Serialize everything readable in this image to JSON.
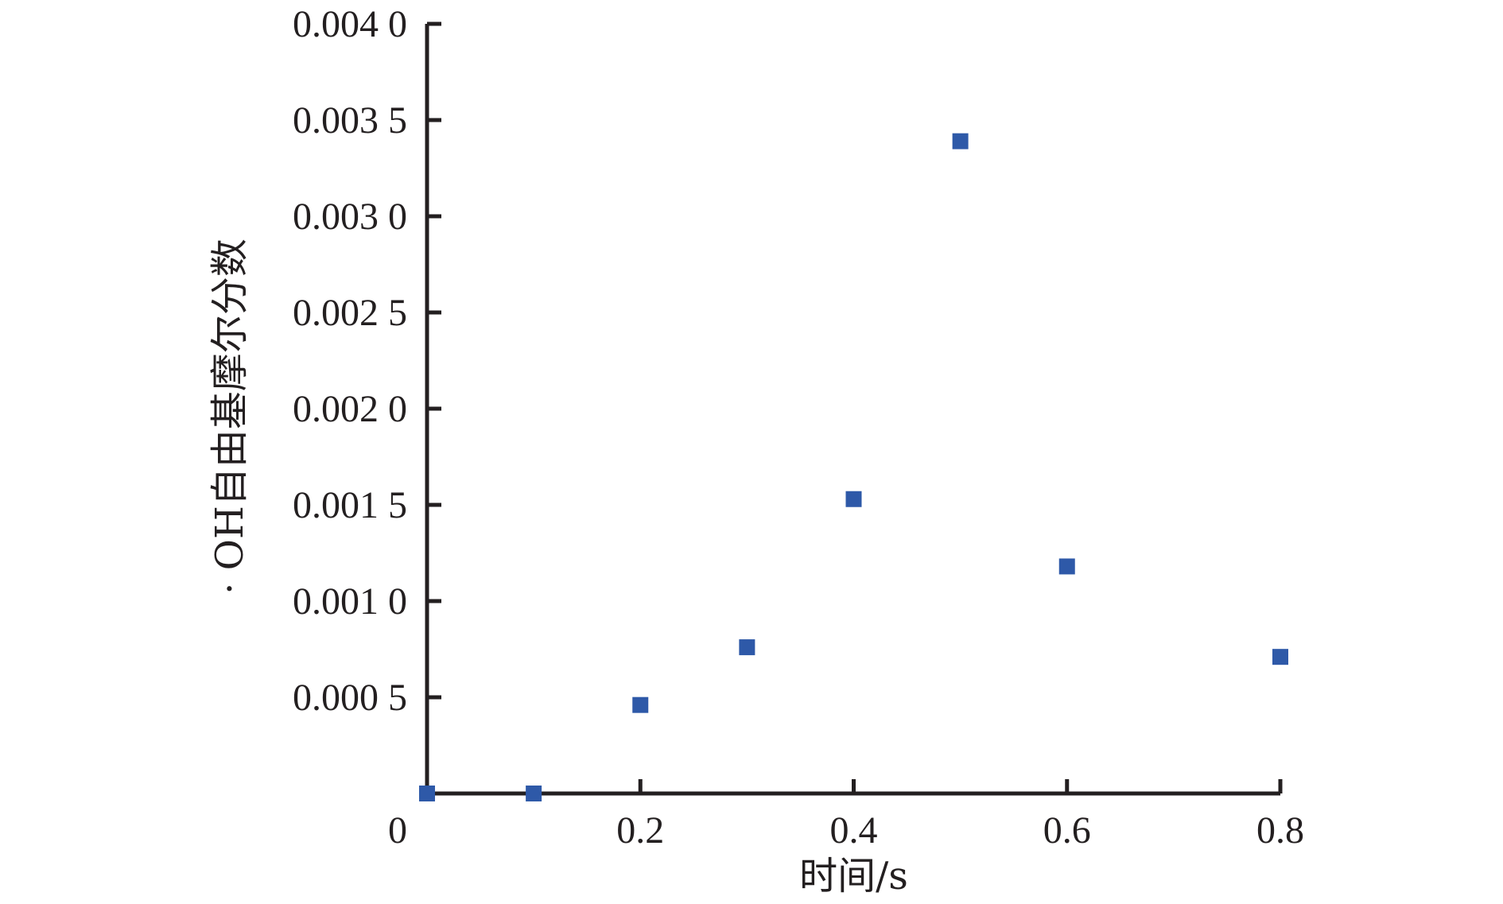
{
  "chart_data": {
    "type": "scatter",
    "title": "",
    "xlabel": "时间/s",
    "ylabel": "· OH自由基摩尔分数",
    "xlim": [
      0,
      0.8
    ],
    "ylim": [
      0,
      0.004
    ],
    "x_ticks": [
      {
        "value": 0,
        "label": "0"
      },
      {
        "value": 0.2,
        "label": "0.2"
      },
      {
        "value": 0.4,
        "label": "0.4"
      },
      {
        "value": 0.6,
        "label": "0.6"
      },
      {
        "value": 0.8,
        "label": "0.8"
      }
    ],
    "y_ticks": [
      {
        "value": 0.0005,
        "label": "0.000 5"
      },
      {
        "value": 0.001,
        "label": "0.001 0"
      },
      {
        "value": 0.0015,
        "label": "0.001 5"
      },
      {
        "value": 0.002,
        "label": "0.002 0"
      },
      {
        "value": 0.0025,
        "label": "0.002 5"
      },
      {
        "value": 0.003,
        "label": "0.003 0"
      },
      {
        "value": 0.0035,
        "label": "0.003 5"
      },
      {
        "value": 0.004,
        "label": "0.004 0"
      }
    ],
    "grid": false,
    "legend": "none",
    "marker_color": "#2e59a8",
    "series": [
      {
        "marker": "square",
        "x": [
          0,
          0.1,
          0.2,
          0.3,
          0.4,
          0.5,
          0.6,
          0.8
        ],
        "y": [
          0,
          0,
          0.00046,
          0.00076,
          0.00153,
          0.00339,
          0.00118,
          0.00071
        ]
      }
    ]
  }
}
